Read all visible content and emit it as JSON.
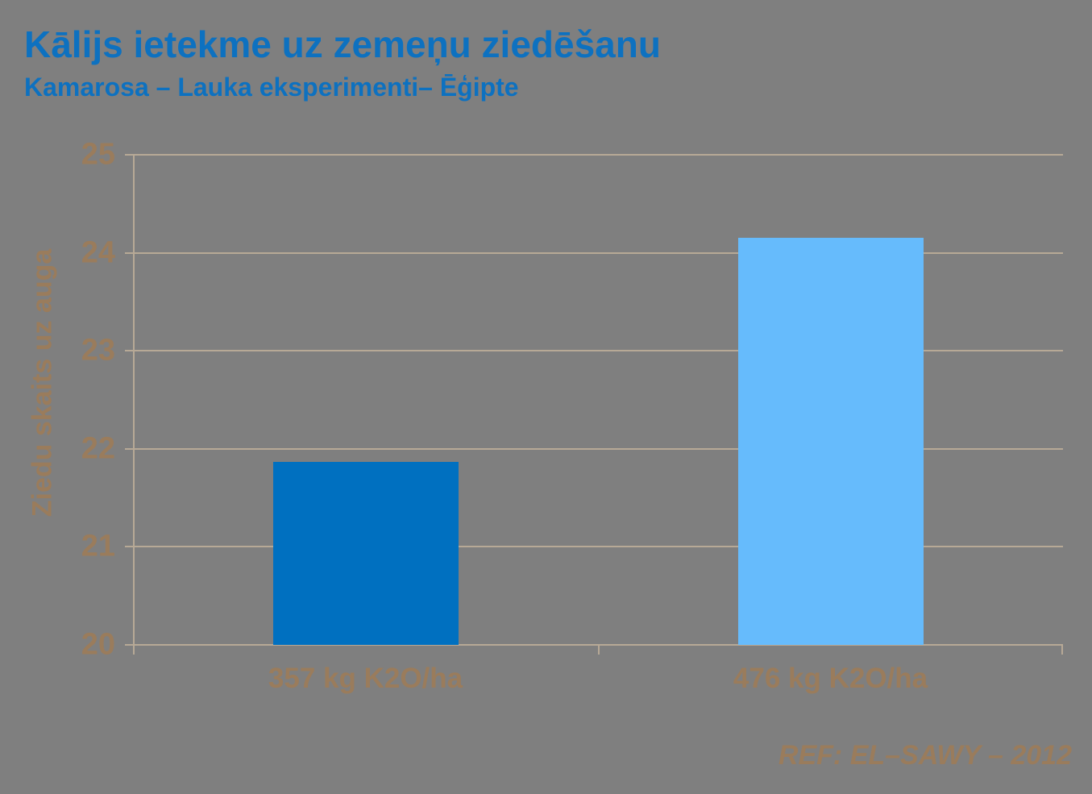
{
  "title": "Kālijs ietekme uz zemeņu ziedēšanu",
  "subtitle": "Kamarosa – Lauka eksperimenti– Ēģipte",
  "ref_note": "REF:  EL–SAWY – 2012",
  "colors": {
    "background": "#7f7f7f",
    "title_text": "#0d71c0",
    "axis_text": "#9a7c5c",
    "gridline": "#b7a996",
    "bar_colors": [
      "#0070c0",
      "#66bbfc"
    ]
  },
  "chart_data": {
    "type": "bar",
    "categories": [
      "357 kg K2O/ha",
      "476 kg K2O/ha"
    ],
    "values": [
      21.87,
      24.15
    ],
    "series": [
      {
        "name": "Ziedu skaits uz auga",
        "values": [
          21.87,
          24.15
        ]
      }
    ],
    "title": "Kālijs ietekme uz zemeņu ziedēšanu",
    "subtitle": "Kamarosa – Lauka eksperimenti– Ēģipte",
    "xlabel": "",
    "ylabel": "Ziedu skaits uz auga",
    "ylim": [
      20,
      25
    ],
    "yticks": [
      20,
      21,
      22,
      23,
      24,
      25
    ],
    "grid": true,
    "legend": false,
    "annotation": "REF:  EL–SAWY – 2012",
    "bar_colors": [
      "#0070c0",
      "#66bbfc"
    ],
    "bar_centers_pct": [
      25,
      75
    ]
  }
}
